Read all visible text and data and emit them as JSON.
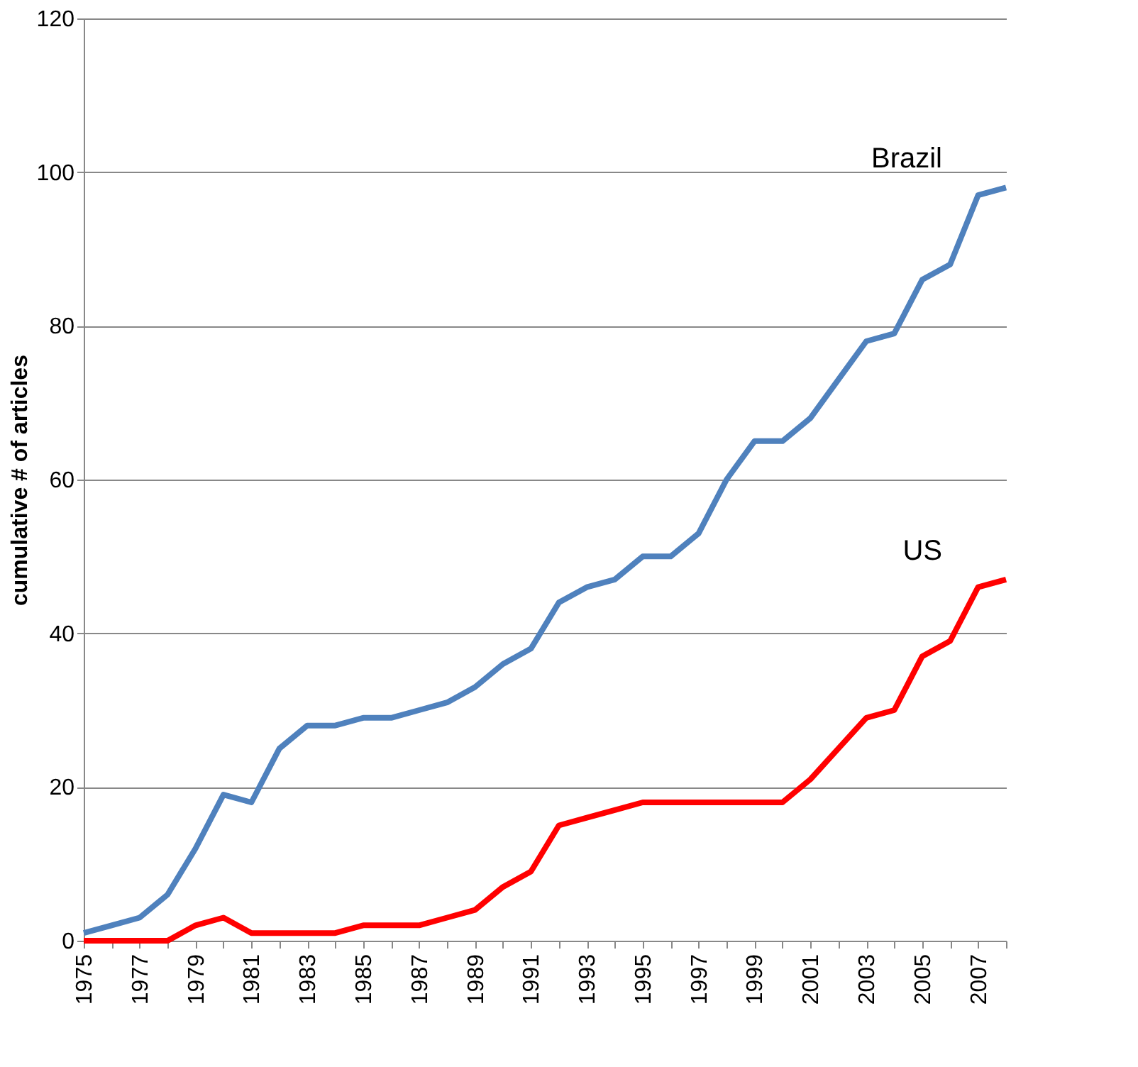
{
  "chart_data": {
    "type": "line",
    "ylabel": "cumulative # of articles",
    "categories": [
      "1975",
      null,
      "1977",
      null,
      "1979",
      null,
      "1981",
      null,
      "1983",
      null,
      "1985",
      null,
      "1987",
      null,
      "1989",
      null,
      "1991",
      null,
      "1993",
      null,
      "1995",
      null,
      "1997",
      null,
      "1999",
      null,
      "2001",
      null,
      "2003",
      null,
      "2005",
      null,
      "2007",
      null
    ],
    "series": [
      {
        "name": "Brazil",
        "color": "#4f81bd",
        "values": [
          1,
          2,
          3,
          6,
          12,
          19,
          18,
          25,
          28,
          28,
          29,
          29,
          30,
          31,
          33,
          36,
          38,
          44,
          46,
          47,
          50,
          50,
          53,
          60,
          65,
          65,
          68,
          73,
          78,
          79,
          86,
          88,
          97,
          98
        ]
      },
      {
        "name": "US",
        "color": "#ff0000",
        "values": [
          0,
          0,
          0,
          0,
          2,
          3,
          1,
          1,
          1,
          1,
          2,
          2,
          2,
          3,
          4,
          7,
          9,
          15,
          16,
          17,
          18,
          18,
          18,
          18,
          18,
          18,
          21,
          25,
          29,
          30,
          37,
          39,
          46,
          47
        ]
      }
    ],
    "ylim": [
      0,
      120
    ],
    "yticks": [
      0,
      20,
      40,
      60,
      80,
      100,
      120
    ],
    "grid": "y",
    "marker": "none",
    "line_style": "solid"
  }
}
